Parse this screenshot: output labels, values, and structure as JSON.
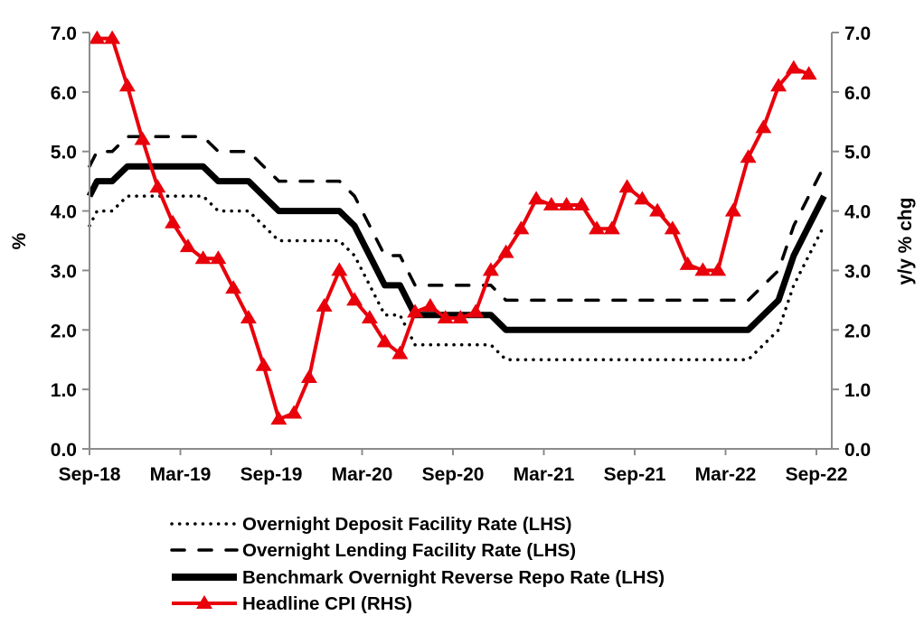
{
  "chart_data": {
    "type": "line",
    "title": "",
    "xlabel": "",
    "ylabel_left": "%",
    "ylabel_right": "y/y % chg",
    "ylim_left": [
      0,
      7
    ],
    "ylim_right": [
      0,
      7
    ],
    "y_ticks_left": [
      "0.0",
      "1.0",
      "2.0",
      "3.0",
      "4.0",
      "5.0",
      "6.0",
      "7.0"
    ],
    "y_ticks_right": [
      "0.0",
      "1.0",
      "2.0",
      "3.0",
      "4.0",
      "5.0",
      "6.0",
      "7.0"
    ],
    "x_unit": "months since Sep-18",
    "xlim": [
      0,
      48
    ],
    "x_ticks": [
      {
        "label": "Sep-18",
        "x": 0
      },
      {
        "label": "Mar-19",
        "x": 6
      },
      {
        "label": "Sep-19",
        "x": 12
      },
      {
        "label": "Mar-20",
        "x": 18
      },
      {
        "label": "Sep-20",
        "x": 24
      },
      {
        "label": "Mar-21",
        "x": 30
      },
      {
        "label": "Sep-21",
        "x": 36
      },
      {
        "label": "Mar-22",
        "x": 42
      },
      {
        "label": "Sep-22",
        "x": 48
      }
    ],
    "grid": false,
    "legend_position": "bottom",
    "series": [
      {
        "name": "Overnight Deposit Facility Rate (LHS)",
        "axis": "left",
        "style": "dotted",
        "color": "#000000",
        "x": [
          0,
          0.5,
          1.5,
          2.5,
          7.5,
          8.5,
          10.5,
          11.5,
          12.5,
          16.5,
          17.5,
          18.5,
          19.5,
          20.5,
          21.5,
          26.5,
          27.5,
          43.5,
          44.5,
          45.5,
          46.5,
          47.5,
          48.5
        ],
        "values": [
          3.75,
          4.0,
          4.0,
          4.25,
          4.25,
          4.0,
          4.0,
          3.75,
          3.5,
          3.5,
          3.25,
          2.75,
          2.25,
          2.25,
          1.75,
          1.75,
          1.5,
          1.5,
          1.75,
          2.0,
          2.75,
          3.25,
          3.75
        ]
      },
      {
        "name": "Overnight Lending Facility Rate (LHS)",
        "axis": "left",
        "style": "dashed",
        "color": "#000000",
        "x": [
          0,
          0.5,
          1.5,
          2.5,
          7.5,
          8.5,
          10.5,
          11.5,
          12.5,
          16.5,
          17.5,
          18.5,
          19.5,
          20.5,
          21.5,
          26.5,
          27.5,
          43.5,
          44.5,
          45.5,
          46.5,
          47.5,
          48.5
        ],
        "values": [
          4.75,
          5.0,
          5.0,
          5.25,
          5.25,
          5.0,
          5.0,
          4.75,
          4.5,
          4.5,
          4.25,
          3.75,
          3.25,
          3.25,
          2.75,
          2.75,
          2.5,
          2.5,
          2.75,
          3.0,
          3.75,
          4.25,
          4.75
        ]
      },
      {
        "name": "Benchmark Overnight Reverse Repo Rate (LHS)",
        "axis": "left",
        "style": "solid-thick",
        "color": "#000000",
        "x": [
          0,
          0.5,
          1.5,
          2.5,
          7.5,
          8.5,
          10.5,
          11.5,
          12.5,
          16.5,
          17.5,
          18.5,
          19.5,
          20.5,
          21.5,
          26.5,
          27.5,
          43.5,
          44.5,
          45.5,
          46.5,
          47.5,
          48.5
        ],
        "values": [
          4.25,
          4.5,
          4.5,
          4.75,
          4.75,
          4.5,
          4.5,
          4.25,
          4.0,
          4.0,
          3.75,
          3.25,
          2.75,
          2.75,
          2.25,
          2.25,
          2.0,
          2.0,
          2.25,
          2.5,
          3.25,
          3.75,
          4.25
        ]
      },
      {
        "name": "Headline CPI (RHS)",
        "axis": "right",
        "style": "solid-marker-triangle",
        "color": "#e8000b",
        "x": [
          0.5,
          1.5,
          2.5,
          3.5,
          4.5,
          5.5,
          6.5,
          7.5,
          8.5,
          9.5,
          10.5,
          11.5,
          12.5,
          13.5,
          14.5,
          15.5,
          16.5,
          17.5,
          18.5,
          19.5,
          20.5,
          21.5,
          22.5,
          23.5,
          24.5,
          25.5,
          26.5,
          27.5,
          28.5,
          29.5,
          30.5,
          31.5,
          32.5,
          33.5,
          34.5,
          35.5,
          36.5,
          37.5,
          38.5,
          39.5,
          40.5,
          41.5,
          42.5,
          43.5,
          44.5,
          45.5,
          46.5,
          47.5
        ],
        "values": [
          6.9,
          6.9,
          6.1,
          5.2,
          4.4,
          3.8,
          3.4,
          3.2,
          3.2,
          2.7,
          2.2,
          1.4,
          0.5,
          0.6,
          1.2,
          2.4,
          3.0,
          2.5,
          2.2,
          1.8,
          1.6,
          2.3,
          2.4,
          2.2,
          2.2,
          2.3,
          3.0,
          3.3,
          3.7,
          4.2,
          4.1,
          4.1,
          4.1,
          3.7,
          3.7,
          4.4,
          4.2,
          4.0,
          3.7,
          3.1,
          3.0,
          3.0,
          4.0,
          4.9,
          5.4,
          6.1,
          6.4,
          6.3
        ]
      }
    ]
  }
}
